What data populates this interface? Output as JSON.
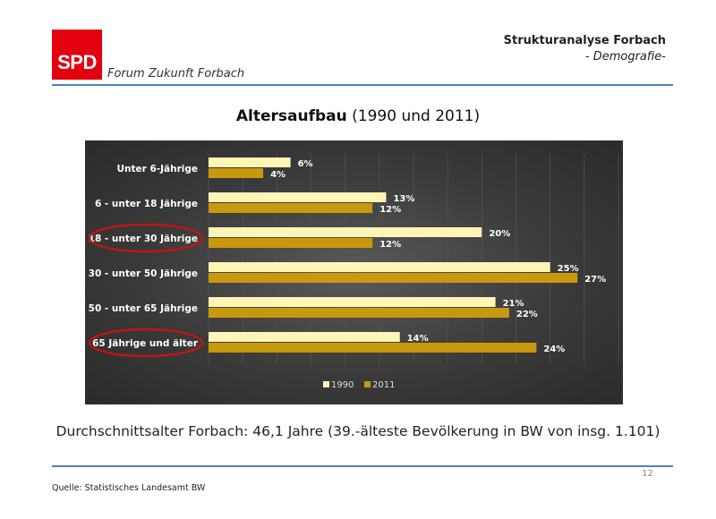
{
  "header": {
    "logo_text": "SPD",
    "subtitle_left": "Forum Zukunft Forbach",
    "title": "Strukturanalyse Forbach",
    "subtitle_right": "- Demografie-"
  },
  "slide": {
    "title_bold": "Altersaufbau",
    "title_rest": " (1990 und 2011)",
    "summary": "Durchschnittsalter Forbach: 46,1 Jahre (39.-älteste Bevölkerung in BW von insg. 1.101)",
    "page_number": "12",
    "source": "Quelle: Statistisches Landesamt BW"
  },
  "colors": {
    "series_1990": "#fef5b6",
    "series_2011": "#c9990d",
    "highlight_circle": "#cc1111",
    "text_light": "#ffffff"
  },
  "chart_data": {
    "type": "bar",
    "orientation": "horizontal",
    "categories": [
      "Unter 6-Jährige",
      "6 - unter 18 Jährige",
      "18 - unter 30 Jährige",
      "30 - unter 50 Jährige",
      "50 - unter 65 Jährige",
      "65 Jährige und älter"
    ],
    "series": [
      {
        "name": "1990",
        "values": [
          6,
          13,
          20,
          25,
          21,
          14
        ],
        "labels": [
          "6%",
          "13%",
          "20%",
          "25%",
          "21%",
          "14%"
        ]
      },
      {
        "name": "2011",
        "values": [
          4,
          12,
          12,
          27,
          22,
          24
        ],
        "labels": [
          "4%",
          "12%",
          "12%",
          "27%",
          "22%",
          "24%"
        ]
      }
    ],
    "highlighted_categories": [
      "18 - unter 30 Jährige",
      "65 Jährige und älter"
    ],
    "xlim": [
      0,
      30
    ],
    "grid": true,
    "legend_position": "bottom"
  }
}
